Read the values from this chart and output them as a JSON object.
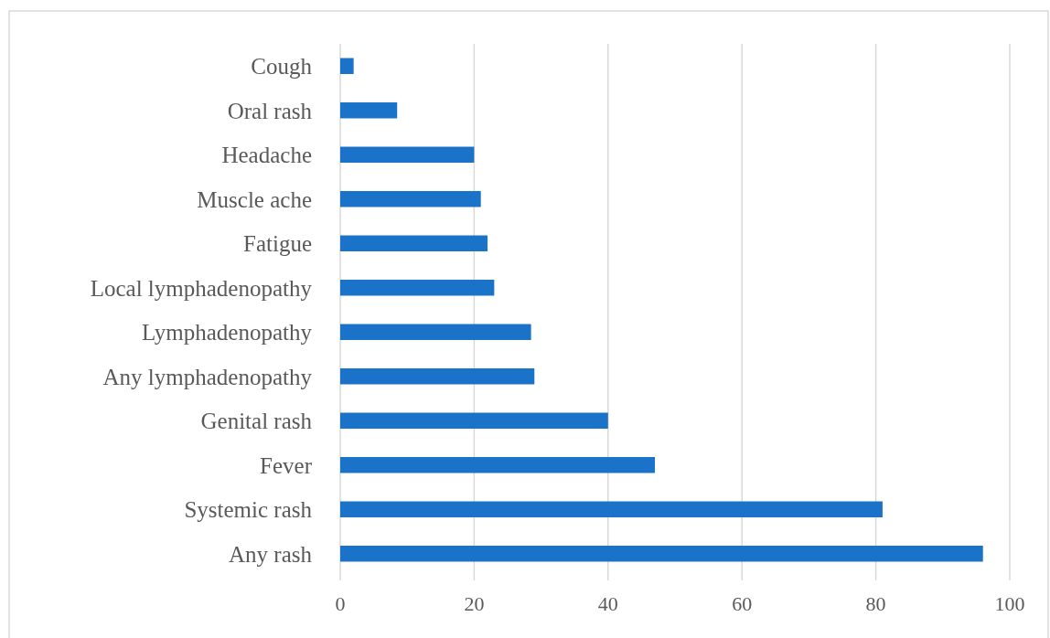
{
  "chart_data": {
    "type": "bar",
    "orientation": "horizontal",
    "categories": [
      "Cough",
      "Oral rash",
      "Headache",
      "Muscle ache",
      "Fatigue",
      "Local lymphadenopathy",
      "Lymphadenopathy",
      "Any lymphadenopathy",
      "Genital rash",
      "Fever",
      "Systemic rash",
      "Any rash"
    ],
    "values": [
      2,
      8.5,
      20,
      21,
      22,
      23,
      28.5,
      29,
      40,
      47,
      81,
      96
    ],
    "color": "#1a73c8",
    "xlim": [
      0,
      100
    ],
    "xticks": [
      0,
      20,
      40,
      60,
      80,
      100
    ],
    "grid": "x"
  }
}
